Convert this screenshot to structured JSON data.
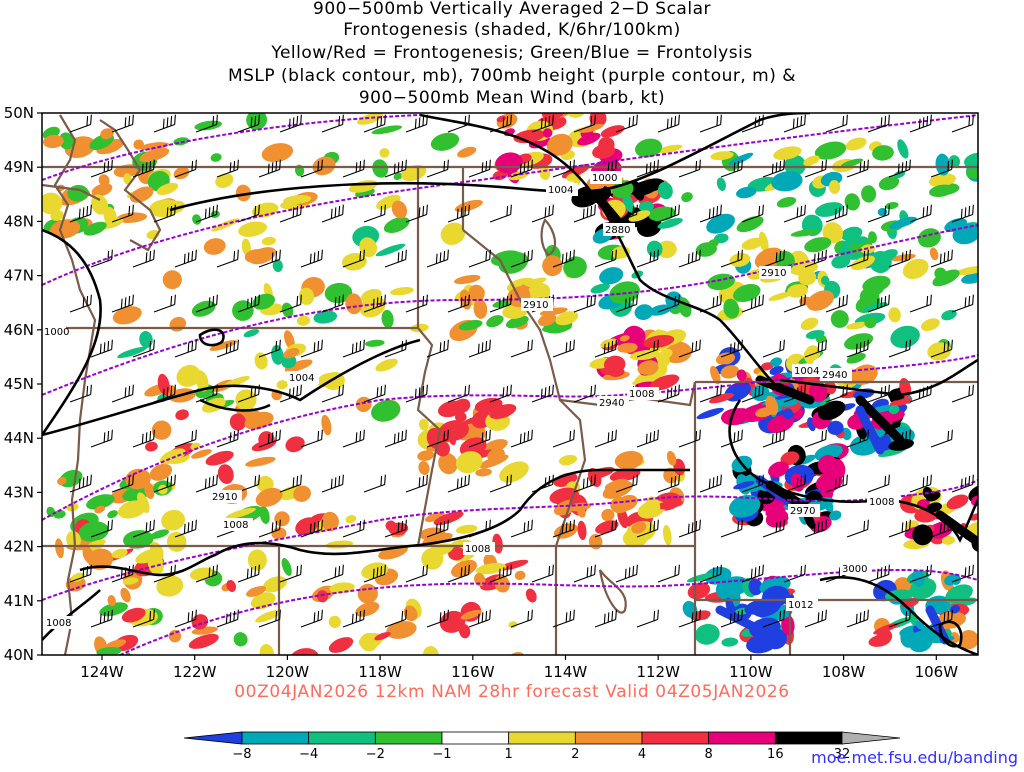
{
  "title": {
    "line1": "900−500mb Vertically Averaged 2−D Scalar",
    "line2": "Frontogenesis (shaded, K/6hr/100km)",
    "line3": "Yellow/Red = Frontogenesis;  Green/Blue = Frontolysis",
    "line4": "MSLP (black contour, mb), 700mb height (purple contour, m) &",
    "line5": "900−500mb Mean Wind (barb, kt)"
  },
  "axes": {
    "lat_labels": [
      "50N",
      "49N",
      "48N",
      "47N",
      "46N",
      "45N",
      "44N",
      "43N",
      "42N",
      "41N",
      "40N"
    ],
    "lon_labels": [
      "124W",
      "122W",
      "120W",
      "118W",
      "116W",
      "114W",
      "112W",
      "110W",
      "108W",
      "106W"
    ]
  },
  "contour_labels": {
    "mslp": [
      "1000",
      "1004",
      "1004",
      "1004",
      "1008",
      "1008",
      "1008",
      "1008",
      "1008",
      "1012",
      "1000"
    ],
    "height": [
      "2880",
      "2910",
      "2910",
      "2910",
      "2940",
      "2940",
      "2970",
      "3000"
    ]
  },
  "footer": "00Z04JAN2026 12km NAM 28hr forecast Valid 04Z05JAN2026",
  "source": "moe.met.fsu.edu/banding",
  "colorbar": {
    "ticks": [
      "−8",
      "−4",
      "−2",
      "−1",
      "1",
      "2",
      "4",
      "8",
      "16",
      "32"
    ],
    "colors": [
      "#1f3fe0",
      "#00a8b8",
      "#10c080",
      "#30c030",
      "#ffffff",
      "#e8d830",
      "#f09030",
      "#f03040",
      "#e8007a",
      "#000000",
      "#b0b0b0"
    ]
  },
  "colors": {
    "mslp": "#000000",
    "height": "#9a00d0",
    "border": "#7a5a48"
  }
}
